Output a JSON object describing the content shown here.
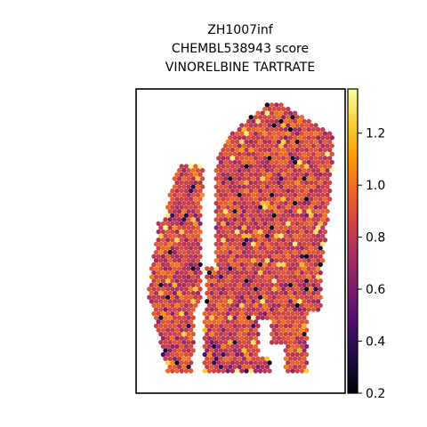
{
  "chart_data": {
    "type": "scatter",
    "title_lines": [
      "ZH1007inf",
      "CHEMBL538943 score",
      "VINORELBINE TARTRATE"
    ],
    "xlabel": "",
    "ylabel": "",
    "colormap": "inferno",
    "colorbar": {
      "range": [
        0.2,
        1.37
      ],
      "ticks": [
        0.2,
        0.4,
        0.6,
        0.8,
        1.0,
        1.2
      ],
      "tick_labels": [
        "0.2",
        "0.4",
        "0.6",
        "0.8",
        "1.0",
        "1.2"
      ]
    },
    "axes_ticks_visible": false,
    "grid": false,
    "description_of_values": "spatial spot scores, mostly 0.6–1.1, scattered lows ~0.2 and highs ~1.3"
  },
  "colors": {
    "frame": "#000000",
    "background": "#ffffff",
    "inferno_stops": [
      "#000004",
      "#1b0c41",
      "#4a0c6b",
      "#781c6d",
      "#a52c60",
      "#cf4446",
      "#ed6925",
      "#fb9b06",
      "#f7d13d",
      "#fcffa4"
    ]
  }
}
